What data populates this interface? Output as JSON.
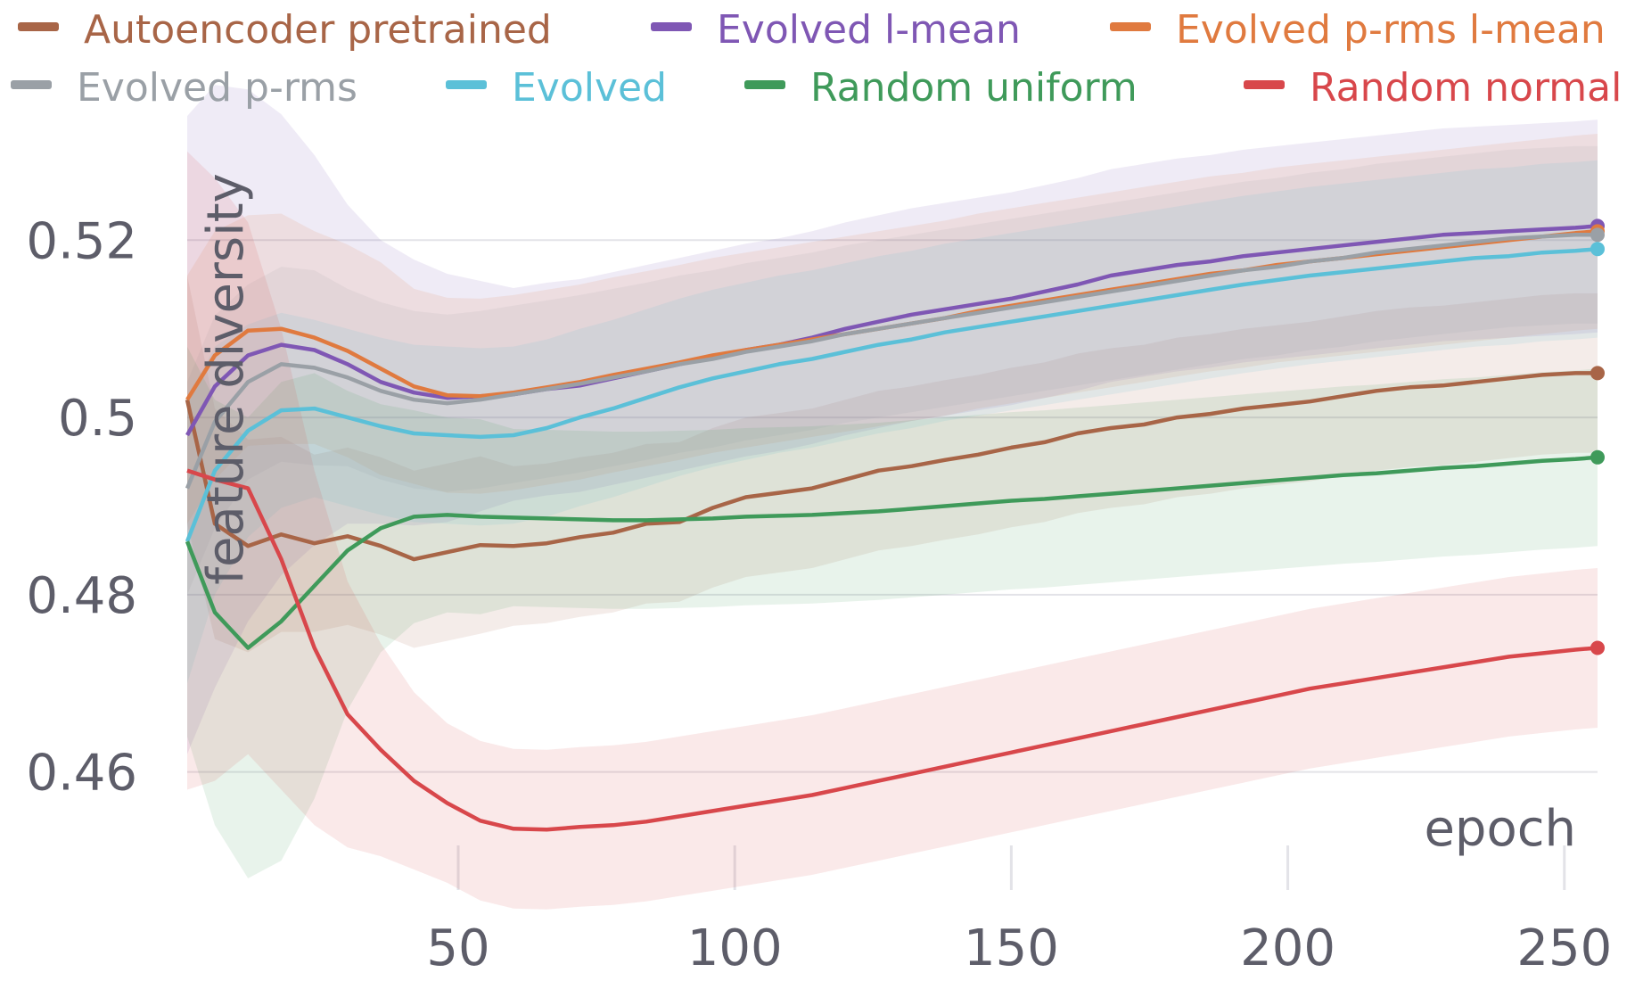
{
  "chart_data": {
    "type": "line",
    "xlabel": "epoch",
    "ylabel": "feature diversity",
    "xlim": [
      1,
      256
    ],
    "ylim": [
      0.449,
      0.532
    ],
    "x_ticks": [
      50,
      100,
      150,
      200,
      250
    ],
    "x_tick_labels": [
      "50",
      "100",
      "150",
      "200",
      "250"
    ],
    "y_ticks": [
      0.46,
      0.48,
      0.5,
      0.52
    ],
    "y_tick_labels": [
      "0.46",
      "0.48",
      "0.5",
      "0.52"
    ],
    "grid": true,
    "legend_placement": "top",
    "x": [
      1,
      6,
      12,
      18,
      24,
      30,
      36,
      42,
      48,
      54,
      60,
      66,
      72,
      78,
      84,
      90,
      96,
      102,
      108,
      114,
      120,
      126,
      132,
      138,
      144,
      150,
      156,
      162,
      168,
      174,
      180,
      186,
      192,
      198,
      204,
      210,
      216,
      222,
      228,
      234,
      240,
      246,
      252,
      256
    ],
    "series": [
      {
        "name": "Autoencoder pretrained",
        "color": "#a86547",
        "values": [
          0.502,
          0.488,
          0.4855,
          0.4868,
          0.4858,
          0.4866,
          0.4855,
          0.484,
          0.4848,
          0.4856,
          0.4855,
          0.4858,
          0.4865,
          0.487,
          0.488,
          0.4882,
          0.4898,
          0.491,
          0.4915,
          0.492,
          0.493,
          0.494,
          0.4945,
          0.4952,
          0.4958,
          0.4966,
          0.4972,
          0.4982,
          0.4988,
          0.4992,
          0.5,
          0.5004,
          0.501,
          0.5014,
          0.5018,
          0.5024,
          0.503,
          0.5034,
          0.5036,
          0.504,
          0.5044,
          0.5048,
          0.505,
          0.505
        ],
        "band": [
          0.014,
          0.013,
          0.012,
          0.011,
          0.01,
          0.01,
          0.01,
          0.01,
          0.01,
          0.01,
          0.009,
          0.009,
          0.009,
          0.009,
          0.009,
          0.009,
          0.009,
          0.009,
          0.009,
          0.009,
          0.009,
          0.009,
          0.009,
          0.009,
          0.009,
          0.009,
          0.009,
          0.009,
          0.009,
          0.009,
          0.009,
          0.009,
          0.009,
          0.009,
          0.009,
          0.009,
          0.009,
          0.009,
          0.009,
          0.009,
          0.009,
          0.009,
          0.009,
          0.009
        ]
      },
      {
        "name": "Evolved l-mean",
        "color": "#7f57b4",
        "values": [
          0.498,
          0.5035,
          0.507,
          0.5082,
          0.5076,
          0.506,
          0.504,
          0.5028,
          0.5022,
          0.5024,
          0.5026,
          0.5032,
          0.5036,
          0.5044,
          0.5052,
          0.506,
          0.5068,
          0.5076,
          0.5082,
          0.509,
          0.51,
          0.5108,
          0.5116,
          0.5122,
          0.5128,
          0.5134,
          0.5142,
          0.515,
          0.516,
          0.5166,
          0.5172,
          0.5176,
          0.5182,
          0.5186,
          0.519,
          0.5194,
          0.5198,
          0.5202,
          0.5206,
          0.5208,
          0.521,
          0.5212,
          0.5214,
          0.5216
        ],
        "band": [
          0.036,
          0.034,
          0.03,
          0.026,
          0.022,
          0.018,
          0.016,
          0.015,
          0.014,
          0.013,
          0.012,
          0.012,
          0.012,
          0.012,
          0.012,
          0.012,
          0.012,
          0.012,
          0.012,
          0.012,
          0.012,
          0.012,
          0.012,
          0.012,
          0.012,
          0.012,
          0.012,
          0.012,
          0.012,
          0.012,
          0.012,
          0.012,
          0.012,
          0.012,
          0.012,
          0.012,
          0.012,
          0.012,
          0.012,
          0.012,
          0.012,
          0.012,
          0.012,
          0.012
        ]
      },
      {
        "name": "Evolved p-rms l-mean",
        "color": "#e07a3f",
        "values": [
          0.502,
          0.507,
          0.5098,
          0.51,
          0.509,
          0.5075,
          0.5055,
          0.5035,
          0.5025,
          0.5024,
          0.5028,
          0.5034,
          0.504,
          0.5048,
          0.5055,
          0.5062,
          0.507,
          0.5076,
          0.5082,
          0.5088,
          0.5094,
          0.51,
          0.5106,
          0.5112,
          0.512,
          0.5126,
          0.5132,
          0.5138,
          0.5144,
          0.515,
          0.5156,
          0.5162,
          0.5166,
          0.5172,
          0.5176,
          0.518,
          0.5184,
          0.5188,
          0.5192,
          0.5196,
          0.52,
          0.5204,
          0.5208,
          0.521
        ],
        "band": [
          0.014,
          0.014,
          0.013,
          0.013,
          0.012,
          0.012,
          0.012,
          0.011,
          0.011,
          0.011,
          0.011,
          0.011,
          0.011,
          0.011,
          0.011,
          0.011,
          0.011,
          0.011,
          0.011,
          0.011,
          0.011,
          0.011,
          0.011,
          0.011,
          0.011,
          0.011,
          0.011,
          0.011,
          0.011,
          0.011,
          0.011,
          0.011,
          0.011,
          0.011,
          0.011,
          0.011,
          0.011,
          0.011,
          0.011,
          0.011,
          0.011,
          0.011,
          0.011,
          0.011
        ]
      },
      {
        "name": "Evolved p-rms",
        "color": "#9aa0a6",
        "values": [
          0.492,
          0.4995,
          0.504,
          0.506,
          0.5056,
          0.5045,
          0.503,
          0.502,
          0.5016,
          0.502,
          0.5026,
          0.5032,
          0.5038,
          0.5045,
          0.5052,
          0.506,
          0.5066,
          0.5074,
          0.508,
          0.5086,
          0.5094,
          0.51,
          0.5106,
          0.5112,
          0.5118,
          0.5124,
          0.513,
          0.5136,
          0.5142,
          0.5148,
          0.5154,
          0.516,
          0.5166,
          0.517,
          0.5176,
          0.518,
          0.5186,
          0.519,
          0.5194,
          0.5198,
          0.5202,
          0.5204,
          0.5206,
          0.5206
        ],
        "band": [
          0.012,
          0.012,
          0.011,
          0.011,
          0.011,
          0.01,
          0.01,
          0.01,
          0.01,
          0.01,
          0.01,
          0.01,
          0.01,
          0.01,
          0.01,
          0.01,
          0.01,
          0.01,
          0.01,
          0.01,
          0.01,
          0.01,
          0.01,
          0.01,
          0.01,
          0.01,
          0.01,
          0.01,
          0.01,
          0.01,
          0.01,
          0.01,
          0.01,
          0.01,
          0.01,
          0.01,
          0.01,
          0.01,
          0.01,
          0.01,
          0.01,
          0.01,
          0.01,
          0.01
        ]
      },
      {
        "name": "Evolved",
        "color": "#5bc0d8",
        "values": [
          0.486,
          0.494,
          0.4985,
          0.5008,
          0.501,
          0.5,
          0.499,
          0.4982,
          0.498,
          0.4978,
          0.498,
          0.4988,
          0.5,
          0.501,
          0.5022,
          0.5034,
          0.5044,
          0.5052,
          0.506,
          0.5066,
          0.5074,
          0.5082,
          0.5088,
          0.5096,
          0.5102,
          0.5108,
          0.5114,
          0.512,
          0.5126,
          0.5132,
          0.5138,
          0.5144,
          0.515,
          0.5155,
          0.516,
          0.5164,
          0.5168,
          0.5172,
          0.5176,
          0.518,
          0.5182,
          0.5186,
          0.5188,
          0.519
        ],
        "band": [
          0.016,
          0.014,
          0.012,
          0.011,
          0.01,
          0.01,
          0.01,
          0.01,
          0.01,
          0.01,
          0.01,
          0.01,
          0.01,
          0.01,
          0.01,
          0.01,
          0.01,
          0.01,
          0.01,
          0.01,
          0.01,
          0.01,
          0.01,
          0.01,
          0.01,
          0.01,
          0.01,
          0.01,
          0.01,
          0.01,
          0.01,
          0.01,
          0.01,
          0.01,
          0.01,
          0.01,
          0.01,
          0.01,
          0.01,
          0.01,
          0.01,
          0.01,
          0.01,
          0.01
        ]
      },
      {
        "name": "Random uniform",
        "color": "#3f9a5a",
        "values": [
          0.486,
          0.478,
          0.474,
          0.477,
          0.481,
          0.485,
          0.4875,
          0.4888,
          0.489,
          0.4888,
          0.4887,
          0.4886,
          0.4885,
          0.4884,
          0.4884,
          0.4885,
          0.4886,
          0.4888,
          0.4889,
          0.489,
          0.4892,
          0.4894,
          0.4897,
          0.49,
          0.4903,
          0.4906,
          0.4908,
          0.4911,
          0.4914,
          0.4917,
          0.492,
          0.4923,
          0.4926,
          0.4929,
          0.4932,
          0.4935,
          0.4937,
          0.494,
          0.4943,
          0.4945,
          0.4948,
          0.4951,
          0.4953,
          0.4955
        ],
        "band": [
          0.022,
          0.024,
          0.026,
          0.027,
          0.024,
          0.018,
          0.014,
          0.012,
          0.011,
          0.011,
          0.01,
          0.01,
          0.01,
          0.01,
          0.01,
          0.01,
          0.01,
          0.01,
          0.01,
          0.01,
          0.01,
          0.01,
          0.01,
          0.01,
          0.01,
          0.01,
          0.01,
          0.01,
          0.01,
          0.01,
          0.01,
          0.01,
          0.01,
          0.01,
          0.01,
          0.01,
          0.01,
          0.01,
          0.01,
          0.01,
          0.01,
          0.01,
          0.01,
          0.01
        ]
      },
      {
        "name": "Random normal",
        "color": "#d8474b",
        "values": [
          0.494,
          0.493,
          0.492,
          0.484,
          0.474,
          0.4665,
          0.4625,
          0.459,
          0.4565,
          0.4545,
          0.4536,
          0.4535,
          0.4538,
          0.454,
          0.4544,
          0.455,
          0.4556,
          0.4562,
          0.4568,
          0.4574,
          0.4582,
          0.459,
          0.4598,
          0.4606,
          0.4614,
          0.4622,
          0.463,
          0.4638,
          0.4646,
          0.4654,
          0.4662,
          0.467,
          0.4678,
          0.4686,
          0.4694,
          0.47,
          0.4706,
          0.4712,
          0.4718,
          0.4724,
          0.473,
          0.4734,
          0.4738,
          0.474
        ],
        "band": [
          0.036,
          0.034,
          0.03,
          0.026,
          0.02,
          0.015,
          0.012,
          0.01,
          0.009,
          0.009,
          0.009,
          0.009,
          0.009,
          0.009,
          0.009,
          0.009,
          0.009,
          0.009,
          0.009,
          0.009,
          0.009,
          0.009,
          0.009,
          0.009,
          0.009,
          0.009,
          0.009,
          0.009,
          0.009,
          0.009,
          0.009,
          0.009,
          0.009,
          0.009,
          0.009,
          0.009,
          0.009,
          0.009,
          0.009,
          0.009,
          0.009,
          0.009,
          0.009,
          0.009
        ]
      }
    ]
  }
}
